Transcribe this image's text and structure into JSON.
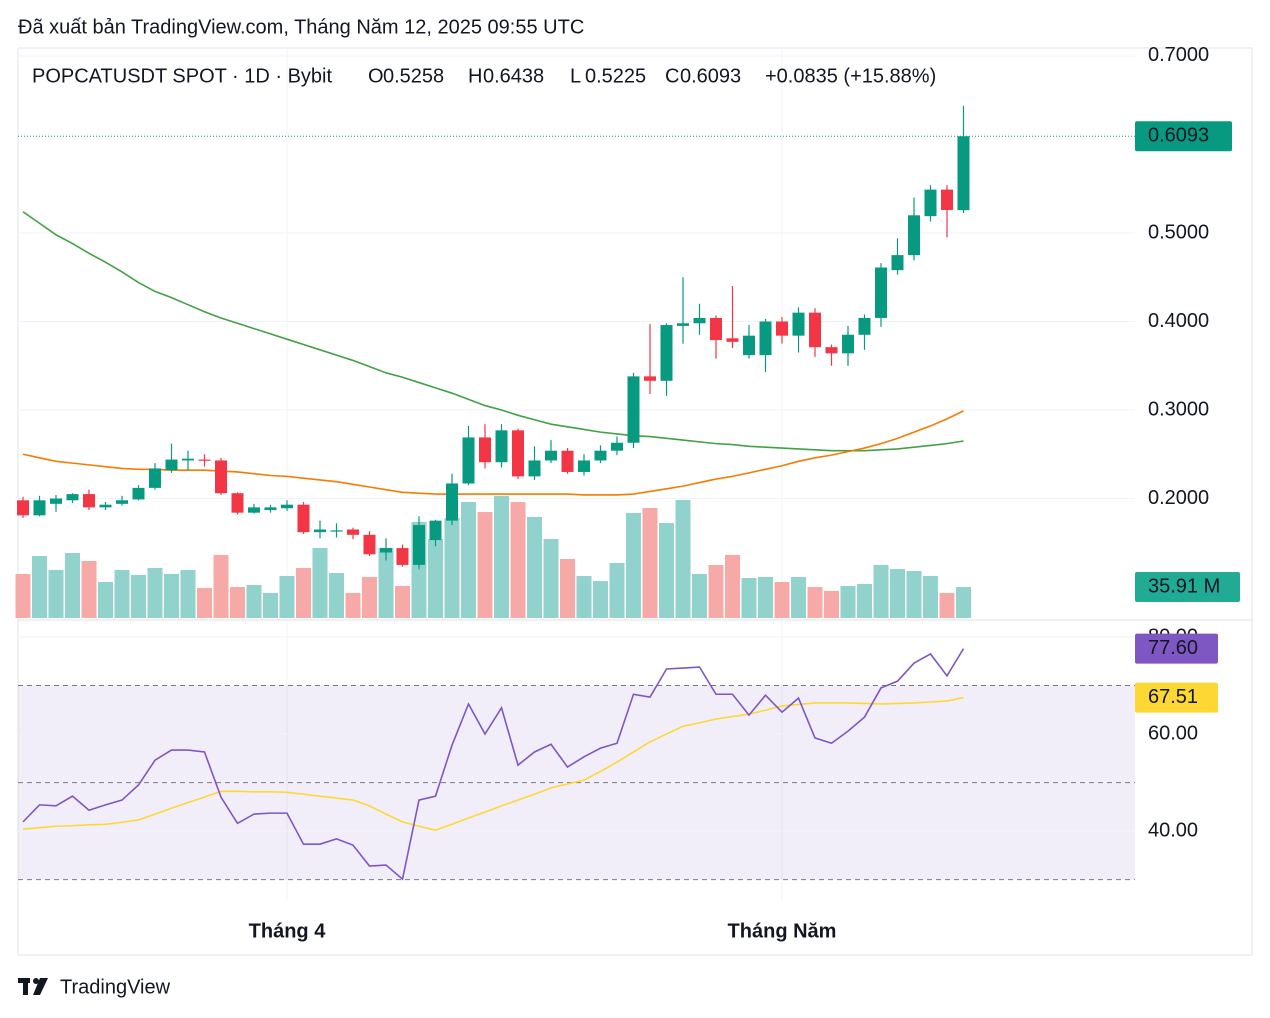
{
  "chart_data": {
    "type": "candlestick",
    "header": "Đã xuất bản TradingView.com, Tháng Năm 12, 2025 09:55 UTC",
    "title": "POPCATUSDT SPOT · 1D · Bybit",
    "ohlc_letters": [
      "O",
      "H",
      "L",
      "C"
    ],
    "change_label": "+0.0835 (+15.88%)",
    "categories": [
      null,
      null,
      null,
      null,
      null,
      null,
      null,
      null,
      null,
      null,
      null,
      null,
      null,
      null,
      null,
      null,
      "Tháng 4",
      null,
      null,
      null,
      null,
      null,
      null,
      null,
      null,
      null,
      null,
      null,
      null,
      null,
      null,
      null,
      null,
      null,
      null,
      null,
      null,
      null,
      null,
      null,
      null,
      null,
      null,
      null,
      null,
      null,
      "Tháng Năm",
      null,
      null,
      null,
      null,
      null,
      null,
      null,
      null,
      null,
      null,
      null
    ],
    "open": [
      0.198,
      0.181,
      0.194,
      0.198,
      0.205,
      0.19,
      0.194,
      0.199,
      0.212,
      0.232,
      0.243,
      0.244,
      0.243,
      0.206,
      0.184,
      0.187,
      0.189,
      0.193,
      0.162,
      0.163,
      0.165,
      0.159,
      0.139,
      0.144,
      0.125,
      0.153,
      0.175,
      0.217,
      0.269,
      0.241,
      0.277,
      0.225,
      0.243,
      0.254,
      0.23,
      0.243,
      0.254,
      0.263,
      0.338,
      0.333,
      0.395,
      0.398,
      0.404,
      0.381,
      0.362,
      0.362,
      0.4,
      0.384,
      0.41,
      0.371,
      0.364,
      0.385,
      0.404,
      0.458,
      0.475,
      0.519,
      0.549,
      0.5258
    ],
    "high": [
      0.202,
      0.203,
      0.204,
      0.206,
      0.21,
      0.196,
      0.203,
      0.215,
      0.24,
      0.262,
      0.254,
      0.25,
      0.246,
      0.207,
      0.194,
      0.193,
      0.198,
      0.196,
      0.175,
      0.172,
      0.167,
      0.163,
      0.155,
      0.148,
      0.18,
      0.176,
      0.228,
      0.282,
      0.284,
      0.284,
      0.279,
      0.259,
      0.266,
      0.257,
      0.25,
      0.26,
      0.27,
      0.342,
      0.397,
      0.398,
      0.45,
      0.42,
      0.407,
      0.44,
      0.396,
      0.403,
      0.405,
      0.416,
      0.415,
      0.374,
      0.395,
      0.408,
      0.466,
      0.494,
      0.54,
      0.554,
      0.554,
      0.6438
    ],
    "low": [
      0.178,
      0.18,
      0.185,
      0.195,
      0.187,
      0.187,
      0.192,
      0.198,
      0.21,
      0.229,
      0.232,
      0.236,
      0.204,
      0.182,
      0.183,
      0.184,
      0.186,
      0.16,
      0.155,
      0.156,
      0.154,
      0.135,
      0.13,
      0.123,
      0.12,
      0.146,
      0.17,
      0.215,
      0.234,
      0.235,
      0.222,
      0.221,
      0.24,
      0.228,
      0.226,
      0.24,
      0.249,
      0.257,
      0.318,
      0.316,
      0.375,
      0.385,
      0.358,
      0.37,
      0.358,
      0.343,
      0.375,
      0.365,
      0.36,
      0.35,
      0.35,
      0.368,
      0.394,
      0.453,
      0.469,
      0.513,
      0.495,
      0.5225
    ],
    "close": [
      0.181,
      0.198,
      0.2,
      0.205,
      0.19,
      0.193,
      0.198,
      0.212,
      0.234,
      0.244,
      0.245,
      0.243,
      0.206,
      0.184,
      0.19,
      0.19,
      0.193,
      0.162,
      0.165,
      0.164,
      0.159,
      0.137,
      0.144,
      0.125,
      0.17,
      0.175,
      0.217,
      0.269,
      0.241,
      0.277,
      0.225,
      0.243,
      0.254,
      0.23,
      0.243,
      0.254,
      0.263,
      0.338,
      0.333,
      0.396,
      0.398,
      0.404,
      0.379,
      0.377,
      0.384,
      0.4,
      0.384,
      0.41,
      0.371,
      0.364,
      0.385,
      0.404,
      0.461,
      0.475,
      0.52,
      0.549,
      0.526,
      0.6093
    ],
    "up_color": "#089981",
    "down_color": "#f23645",
    "ylim": [
      0.065,
      0.709
    ],
    "yticks": [
      {
        "value": 0.2,
        "label": "0.2000"
      },
      {
        "value": 0.3,
        "label": "0.3000"
      },
      {
        "value": 0.4,
        "label": "0.4000"
      },
      {
        "value": 0.5,
        "label": "0.5000"
      },
      {
        "value": 0.7,
        "label": "0.7000"
      }
    ],
    "grid": true,
    "last_price_line": true,
    "overlays": [
      {
        "color": "#43a047",
        "values": [
          0.524,
          0.511,
          0.498,
          0.488,
          0.477,
          0.467,
          0.456,
          0.444,
          0.434,
          0.427,
          0.419,
          0.411,
          0.404,
          0.398,
          0.392,
          0.386,
          0.38,
          0.374,
          0.368,
          0.362,
          0.356,
          0.349,
          0.342,
          0.337,
          0.331,
          0.325,
          0.319,
          0.312,
          0.305,
          0.3,
          0.294,
          0.289,
          0.284,
          0.281,
          0.278,
          0.275,
          0.273,
          0.271,
          0.27,
          0.268,
          0.266,
          0.264,
          0.262,
          0.261,
          0.259,
          0.258,
          0.257,
          0.256,
          0.255,
          0.254,
          0.254,
          0.254,
          0.255,
          0.256,
          0.258,
          0.26,
          0.262,
          0.265
        ]
      },
      {
        "color": "#f57c00",
        "values": [
          0.25,
          0.246,
          0.242,
          0.24,
          0.238,
          0.236,
          0.234,
          0.233,
          0.233,
          0.232,
          0.232,
          0.232,
          0.231,
          0.23,
          0.228,
          0.226,
          0.225,
          0.223,
          0.221,
          0.219,
          0.216,
          0.213,
          0.21,
          0.207,
          0.206,
          0.205,
          0.205,
          0.205,
          0.205,
          0.205,
          0.205,
          0.205,
          0.205,
          0.205,
          0.204,
          0.204,
          0.204,
          0.205,
          0.208,
          0.211,
          0.214,
          0.218,
          0.222,
          0.225,
          0.229,
          0.233,
          0.237,
          0.242,
          0.246,
          0.249,
          0.253,
          0.257,
          0.262,
          0.268,
          0.275,
          0.282,
          0.29,
          0.299
        ]
      }
    ],
    "volume": {
      "values": [
        51.0,
        71.8,
        55.6,
        75.3,
        66.0,
        41.7,
        55.6,
        49.8,
        57.9,
        51.0,
        55.6,
        34.7,
        73.0,
        35.9,
        38.2,
        29.0,
        48.6,
        57.9,
        81.1,
        52.1,
        29.0,
        47.5,
        81.1,
        37.1,
        111.2,
        91.5,
        115.8,
        134.3,
        122.7,
        141.3,
        134.3,
        117.0,
        91.5,
        68.3,
        48.6,
        42.8,
        63.7,
        121.6,
        127.4,
        110.0,
        136.6,
        51.0,
        61.4,
        73.0,
        46.3,
        47.5,
        41.7,
        47.5,
        35.9,
        31.3,
        37.1,
        39.4,
        61.4,
        56.7,
        54.4,
        48.6,
        29.0,
        35.91
      ],
      "value_label": "35.91 M",
      "ylim": [
        0,
        660
      ],
      "up_color": "#92d2cc",
      "down_color": "#f7a9a7",
      "label_color": "#22ab94"
    },
    "rsi": {
      "values": [
        41.9,
        45.4,
        45.2,
        47.2,
        44.3,
        45.4,
        46.4,
        49.5,
        54.6,
        56.7,
        56.7,
        56.3,
        47.0,
        41.6,
        43.5,
        43.7,
        43.7,
        37.3,
        37.3,
        38.4,
        37.1,
        32.8,
        33.0,
        30.1,
        46.4,
        47.2,
        57.7,
        66.2,
        60.0,
        65.4,
        53.6,
        56.3,
        57.9,
        53.2,
        55.3,
        57.1,
        58.1,
        68.2,
        67.6,
        73.4,
        73.6,
        73.8,
        68.2,
        68.2,
        63.9,
        68.0,
        64.5,
        67.4,
        59.2,
        58.1,
        60.6,
        63.5,
        69.5,
        70.9,
        74.6,
        76.5,
        72.0,
        77.6
      ],
      "value_label": "77.60",
      "color": "#7e57c2",
      "ma_values": [
        40.4,
        40.7,
        41.0,
        41.1,
        41.3,
        41.4,
        41.8,
        42.3,
        43.5,
        44.7,
        45.9,
        47.0,
        48.2,
        48.2,
        48.1,
        48.1,
        48.0,
        47.6,
        47.2,
        46.8,
        46.4,
        45.2,
        43.5,
        41.9,
        41.0,
        40.2,
        41.4,
        42.7,
        43.9,
        45.2,
        46.4,
        47.6,
        48.9,
        49.7,
        50.5,
        52.3,
        54.2,
        56.3,
        58.4,
        60.0,
        61.6,
        62.3,
        63.1,
        63.6,
        64.1,
        64.9,
        65.8,
        66.1,
        66.4,
        66.4,
        66.4,
        66.3,
        66.2,
        66.3,
        66.4,
        66.6,
        66.8,
        67.51
      ],
      "ma_value_label": "67.51",
      "ma_color": "#fdd835",
      "ylim": [
        25.8,
        83.5
      ],
      "yticks": [
        {
          "value": 40,
          "label": "40.00"
        },
        {
          "value": 60,
          "label": "60.00"
        },
        {
          "value": 80,
          "label": "80.00"
        }
      ],
      "bands": [
        30,
        50,
        70
      ],
      "band_color": "#7e57c2"
    },
    "footer": "TradingView"
  }
}
